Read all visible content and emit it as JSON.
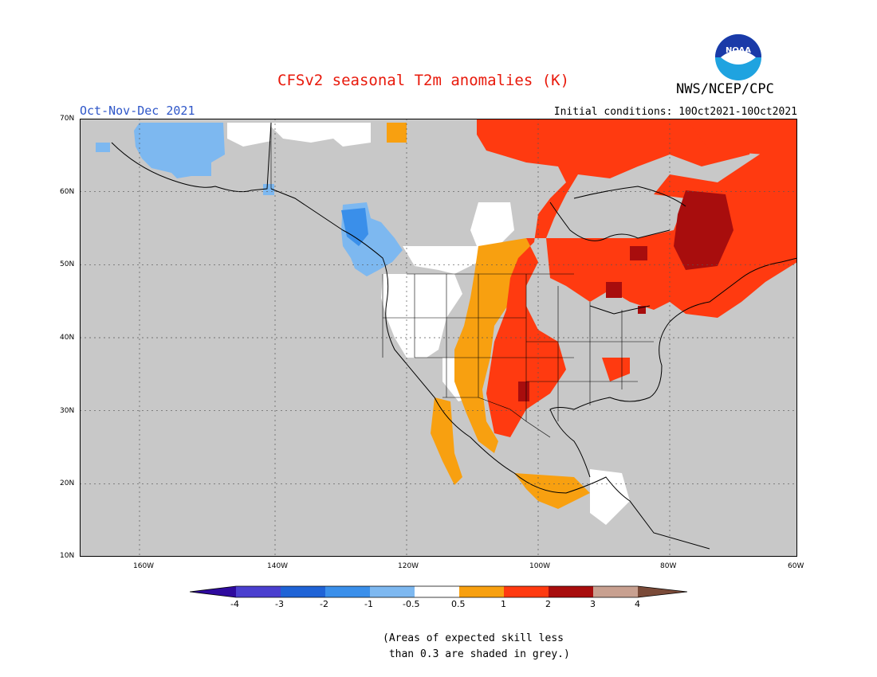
{
  "header": {
    "title": "CFSv2 seasonal T2m anomalies (K)",
    "agency": "NWS/NCEP/CPC",
    "season": "Oct-Nov-Dec 2021",
    "initial_conditions": "Initial conditions: 10Oct2021-10Oct2021",
    "logo_text": "NOAA"
  },
  "map": {
    "lat_labels": [
      "70N",
      "60N",
      "50N",
      "40N",
      "30N",
      "20N",
      "10N"
    ],
    "lon_labels": [
      "160W",
      "140W",
      "120W",
      "100W",
      "80W",
      "60W"
    ],
    "land_no_skill_color": "#c8c8c8",
    "ocean_color": "#c8c8c8"
  },
  "legend": {
    "labels": [
      "-4",
      "-3",
      "-2",
      "-1",
      "-0.5",
      "0.5",
      "1",
      "2",
      "3",
      "4"
    ],
    "colors": [
      "#2e0a9e",
      "#4a3fcf",
      "#1f63d6",
      "#3a8fea",
      "#7db8f0",
      "#ffffff",
      "#f8a010",
      "#ff3a10",
      "#a80d0d",
      "#c8a090",
      "#7a4a38"
    ]
  },
  "footnote": {
    "line1": "(Areas of expected skill less",
    "line2": " than 0.3 are shaded in grey.)"
  }
}
